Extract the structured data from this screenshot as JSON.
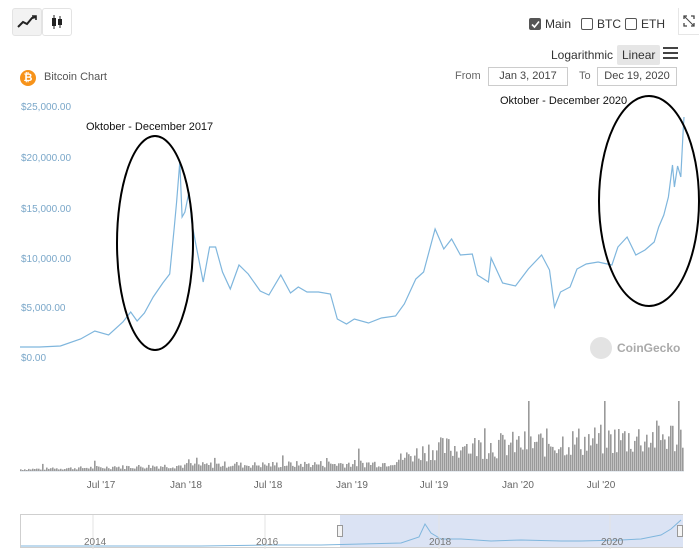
{
  "toolbar": {
    "line_icon": "line-chart-icon",
    "candle_icon": "candlestick-icon",
    "expand_icon": "expand-icon",
    "menu_icon": "hamburger-menu-icon",
    "series_toggles": [
      {
        "label": "Main",
        "checked": true
      },
      {
        "label": "BTC",
        "checked": false
      },
      {
        "label": "ETH",
        "checked": false
      }
    ],
    "scale_options": [
      "Logarithmic",
      "Linear"
    ],
    "scale_selected": "Linear"
  },
  "header": {
    "coin_icon": "bitcoin-icon",
    "title": "Bitcoin Chart",
    "from_label": "From",
    "from_value": "Jan 3, 2017",
    "to_label": "To",
    "to_value": "Dec 19, 2020"
  },
  "watermark": "CoinGecko",
  "annotations": {
    "left": "Oktober - December 2017",
    "right": "Oktober - December 2020"
  },
  "colors": {
    "price_line": "#7fb6dd",
    "volume": "#9a9a9a",
    "annotation_ellipse": "#000000",
    "navigator_selection": "#dbe3f4",
    "axis_label": "#7aa7c9"
  },
  "navigator": {
    "labels": [
      "2014",
      "2016",
      "2018",
      "2020"
    ]
  },
  "chart_data": {
    "type": "line",
    "title": "Bitcoin Chart",
    "y_tick_labels": [
      "$0.00",
      "$5,000.00",
      "$10,000.00",
      "$15,000.00",
      "$20,000.00",
      "$25,000.00"
    ],
    "x_tick_labels": [
      "Jul '17",
      "Jan '18",
      "Jul '18",
      "Jan '19",
      "Jul '19",
      "Jan '20",
      "Jul '20"
    ],
    "ylim": [
      0,
      25000
    ],
    "xlim": [
      "2017-01-03",
      "2020-12-19"
    ],
    "series": [
      {
        "x": [
          "2017-01-03",
          "2017-02-15",
          "2017-04-01",
          "2017-05-15",
          "2017-06-15",
          "2017-07-15",
          "2017-08-15",
          "2017-09-01",
          "2017-09-15",
          "2017-10-01",
          "2017-10-20",
          "2017-11-10",
          "2017-11-25",
          "2017-12-05",
          "2017-12-10",
          "2017-12-17",
          "2017-12-22",
          "2017-12-28",
          "2018-01-06",
          "2018-01-12",
          "2018-01-20",
          "2018-02-06",
          "2018-02-20",
          "2018-03-05",
          "2018-03-20",
          "2018-04-06",
          "2018-04-25",
          "2018-05-15",
          "2018-06-10",
          "2018-06-29",
          "2018-07-25",
          "2018-08-15",
          "2018-09-01",
          "2018-09-20",
          "2018-10-15",
          "2018-11-10",
          "2018-11-25",
          "2018-12-15",
          "2019-01-01",
          "2019-02-01",
          "2019-03-01",
          "2019-04-01",
          "2019-04-20",
          "2019-05-15",
          "2019-06-01",
          "2019-06-26",
          "2019-07-15",
          "2019-08-01",
          "2019-08-20",
          "2019-09-15",
          "2019-09-26",
          "2019-10-20",
          "2019-10-26",
          "2019-11-20",
          "2019-12-18",
          "2020-01-15",
          "2020-02-13",
          "2020-03-01",
          "2020-03-12",
          "2020-03-25",
          "2020-04-15",
          "2020-04-30",
          "2020-05-20",
          "2020-06-15",
          "2020-07-15",
          "2020-07-28",
          "2020-08-17",
          "2020-09-05",
          "2020-09-25",
          "2020-10-15",
          "2020-10-25",
          "2020-11-05",
          "2020-11-15",
          "2020-11-24",
          "2020-11-28",
          "2020-12-05",
          "2020-12-12",
          "2020-12-17",
          "2020-12-19"
        ],
        "values": [
          1000,
          1000,
          1100,
          1800,
          2600,
          2200,
          3500,
          4500,
          3600,
          4400,
          6000,
          7400,
          8300,
          13000,
          15500,
          19500,
          14000,
          14500,
          16500,
          13500,
          11500,
          7500,
          11000,
          11000,
          8500,
          6800,
          9200,
          8300,
          6600,
          6200,
          8200,
          6400,
          7000,
          6500,
          6500,
          6300,
          3800,
          3300,
          3800,
          3400,
          3900,
          4100,
          5300,
          7800,
          8500,
          12800,
          10800,
          11800,
          10200,
          10300,
          8200,
          7500,
          9900,
          7400,
          7100,
          8800,
          10200,
          8700,
          5000,
          6500,
          7000,
          8800,
          9300,
          9500,
          9200,
          11000,
          12000,
          10200,
          10700,
          11500,
          13000,
          14200,
          16000,
          19200,
          17000,
          19100,
          18000,
          22500,
          24000
        ]
      }
    ]
  }
}
